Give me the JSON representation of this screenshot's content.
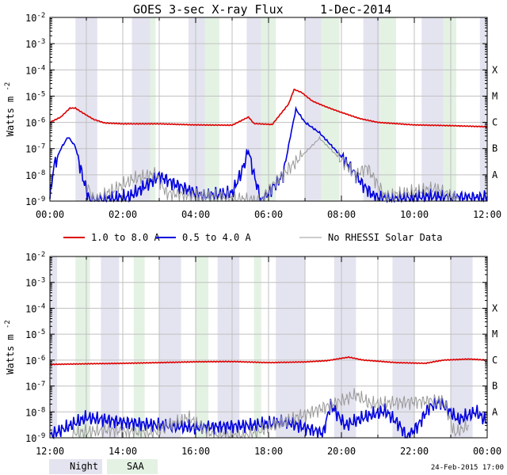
{
  "chart_data": [
    {
      "type": "line",
      "title": "GOES 3-sec X-ray Flux",
      "date": "1-Dec-2014",
      "ylabel": "Watts m",
      "ylabel_sup": "-2",
      "yscale": "log",
      "ylim_exp": [
        -9,
        -2
      ],
      "xlim_hours": [
        0,
        12
      ],
      "xtick_labels": [
        "00:00",
        "02:00",
        "04:00",
        "06:00",
        "08:00",
        "10:00",
        "12:00"
      ],
      "ytick_exponents": [
        -2,
        -3,
        -4,
        -5,
        -6,
        -7,
        -8,
        -9
      ],
      "flare_classes": [
        "X",
        "M",
        "C",
        "B",
        "A"
      ],
      "night_bands_hours": [
        [
          0.7,
          1.3
        ],
        [
          2.25,
          2.75
        ],
        [
          3.8,
          4.25
        ],
        [
          5.4,
          5.8
        ],
        [
          7.0,
          7.45
        ],
        [
          8.6,
          9.05
        ],
        [
          10.2,
          10.8
        ],
        [
          11.8,
          12.0
        ]
      ],
      "saa_bands_hours": [
        [
          2.75,
          2.9
        ],
        [
          4.25,
          4.65
        ],
        [
          5.8,
          6.2
        ],
        [
          7.45,
          7.95
        ],
        [
          9.05,
          9.5
        ],
        [
          10.8,
          11.15
        ]
      ],
      "series": [
        {
          "name": "1.0 to 8.0 A",
          "color": "#dd0000",
          "points": [
            [
              0,
              1e-06
            ],
            [
              0.3,
              1.6e-06
            ],
            [
              0.55,
              3.5e-06
            ],
            [
              0.7,
              3.5e-06
            ],
            [
              0.9,
              2.3e-06
            ],
            [
              1.2,
              1.3e-06
            ],
            [
              1.5,
              9.5e-07
            ],
            [
              2,
              8.8e-07
            ],
            [
              3,
              8.8e-07
            ],
            [
              4,
              8e-07
            ],
            [
              5,
              7.8e-07
            ],
            [
              5.45,
              1.6e-06
            ],
            [
              5.6,
              9e-07
            ],
            [
              6.1,
              8.3e-07
            ],
            [
              6.55,
              5e-06
            ],
            [
              6.7,
              1.8e-05
            ],
            [
              6.9,
              1.4e-05
            ],
            [
              7.2,
              6.5e-06
            ],
            [
              7.6,
              3.8e-06
            ],
            [
              8,
              2.4e-06
            ],
            [
              8.5,
              1.4e-06
            ],
            [
              9,
              1e-06
            ],
            [
              10,
              8e-07
            ],
            [
              11,
              7.5e-07
            ],
            [
              12,
              6.8e-07
            ]
          ]
        },
        {
          "name": "0.5 to 4.0 A",
          "color": "#0000dd",
          "points": [
            [
              0,
              1.2e-09
            ],
            [
              0.1,
              2e-08
            ],
            [
              0.3,
              1e-07
            ],
            [
              0.5,
              2.8e-07
            ],
            [
              0.7,
              1.2e-07
            ],
            [
              0.9,
              8e-09
            ],
            [
              1.1,
              1e-09
            ],
            [
              2.2,
              1.5e-09
            ],
            [
              3,
              9e-09
            ],
            [
              3.5,
              4e-09
            ],
            [
              4.2,
              1.5e-09
            ],
            [
              5,
              2e-09
            ],
            [
              5.25,
              1.2e-08
            ],
            [
              5.45,
              8e-08
            ],
            [
              5.6,
              1e-08
            ],
            [
              5.8,
              1e-09
            ],
            [
              6.4,
              1e-08
            ],
            [
              6.6,
              3e-07
            ],
            [
              6.75,
              3.2e-06
            ],
            [
              7,
              1e-06
            ],
            [
              7.4,
              4e-07
            ],
            [
              8,
              5e-08
            ],
            [
              8.3,
              1.5e-08
            ],
            [
              8.6,
              4e-09
            ],
            [
              8.9,
              1.5e-09
            ],
            [
              9.5,
              1.2e-09
            ],
            [
              10.3,
              1.5e-09
            ],
            [
              11.8,
              1.3e-09
            ],
            [
              12,
              1.5e-09
            ]
          ]
        },
        {
          "name": "No RHESSI Solar Data",
          "color": "#999999",
          "points": [
            [
              1.0,
              5e-09
            ],
            [
              1.2,
              1e-09
            ],
            [
              2.3,
              7e-09
            ],
            [
              2.9,
              1.1e-08
            ],
            [
              3.2,
              2e-09
            ],
            [
              5.8,
              1e-09
            ],
            [
              6.1,
              4e-09
            ],
            [
              7.4,
              2.5e-07
            ],
            [
              8.4,
              1e-08
            ],
            [
              8.7,
              2e-08
            ],
            [
              9.2,
              1.5e-09
            ],
            [
              10.6,
              3e-09
            ],
            [
              11.2,
              1.2e-09
            ]
          ]
        }
      ]
    },
    {
      "type": "line",
      "title": "",
      "ylabel": "Watts m",
      "ylabel_sup": "-2",
      "yscale": "log",
      "ylim_exp": [
        -9,
        -2
      ],
      "xlim_hours": [
        12,
        24
      ],
      "xtick_labels": [
        "12:00",
        "14:00",
        "16:00",
        "18:00",
        "20:00",
        "22:00",
        "00:00"
      ],
      "ytick_exponents": [
        -2,
        -3,
        -4,
        -5,
        -6,
        -7,
        -8,
        -9
      ],
      "flare_classes": [
        "X",
        "M",
        "C",
        "B",
        "A"
      ],
      "night_bands_hours": [
        [
          12.0,
          12.2
        ],
        [
          13.4,
          13.9
        ],
        [
          15.0,
          15.6
        ],
        [
          16.6,
          17.2
        ],
        [
          18.2,
          19.0
        ],
        [
          19.8,
          20.4
        ],
        [
          21.4,
          22.0
        ],
        [
          23.0,
          23.6
        ]
      ],
      "saa_bands_hours": [
        [
          12.7,
          13.1
        ],
        [
          14.3,
          14.6
        ],
        [
          16.0,
          16.35
        ],
        [
          17.6,
          17.8
        ]
      ],
      "series": [
        {
          "name": "1.0 to 8.0 A",
          "color": "#dd0000",
          "points": [
            [
              12,
              6.8e-07
            ],
            [
              13,
              7.2e-07
            ],
            [
              14,
              7.5e-07
            ],
            [
              15,
              8e-07
            ],
            [
              16,
              8.6e-07
            ],
            [
              17,
              8.8e-07
            ],
            [
              18,
              8e-07
            ],
            [
              19,
              8.5e-07
            ],
            [
              19.6,
              9.5e-07
            ],
            [
              20.2,
              1.3e-06
            ],
            [
              20.6,
              1e-06
            ],
            [
              21.5,
              8e-07
            ],
            [
              22.3,
              7.5e-07
            ],
            [
              22.8,
              1e-06
            ],
            [
              23.5,
              1.1e-06
            ],
            [
              24,
              1e-06
            ]
          ]
        },
        {
          "name": "0.5 to 4.0 A",
          "color": "#0000dd",
          "points": [
            [
              12,
              1.2e-09
            ],
            [
              13,
              6e-09
            ],
            [
              14,
              4e-09
            ],
            [
              15,
              3e-09
            ],
            [
              16,
              2.5e-09
            ],
            [
              17.5,
              3e-09
            ],
            [
              18.5,
              4e-09
            ],
            [
              19.5,
              1.5e-09
            ],
            [
              19.7,
              2e-08
            ],
            [
              20.1,
              3e-09
            ],
            [
              20.6,
              6e-09
            ],
            [
              21.2,
              1.1e-08
            ],
            [
              21.6,
              3e-09
            ],
            [
              21.8,
              1e-09
            ],
            [
              22.1,
              3e-09
            ],
            [
              22.4,
              1.5e-08
            ],
            [
              22.7,
              2.5e-08
            ],
            [
              23.2,
              5e-09
            ],
            [
              23.7,
              1e-08
            ],
            [
              24,
              4e-09
            ]
          ]
        },
        {
          "name": "No RHESSI Solar Data",
          "color": "#999999",
          "points": [
            [
              12.6,
              1.5e-09
            ],
            [
              13.6,
              2e-09
            ],
            [
              14.8,
              1.5e-09
            ],
            [
              15.8,
              6e-09
            ],
            [
              16.5,
              1.2e-09
            ],
            [
              17.4,
              1.2e-09
            ],
            [
              20.1,
              3e-08
            ],
            [
              20.4,
              4.5e-08
            ],
            [
              20.8,
              2e-08
            ],
            [
              22.8,
              2.8e-08
            ],
            [
              23.1,
              1.5e-09
            ],
            [
              23.5,
              3e-09
            ]
          ]
        }
      ]
    }
  ],
  "legend": {
    "items": [
      {
        "label": "1.0 to 8.0 A",
        "color": "#dd0000"
      },
      {
        "label": "0.5 to 4.0 A",
        "color": "#0000dd"
      },
      {
        "label": "No RHESSI Solar Data",
        "color": "#999999"
      }
    ]
  },
  "key": {
    "night": "Night",
    "saa": "SAA",
    "night_color": "#e4e4f0",
    "saa_color": "#e4f2e4"
  },
  "footer": {
    "timestamp": "24-Feb-2015 17:00"
  }
}
